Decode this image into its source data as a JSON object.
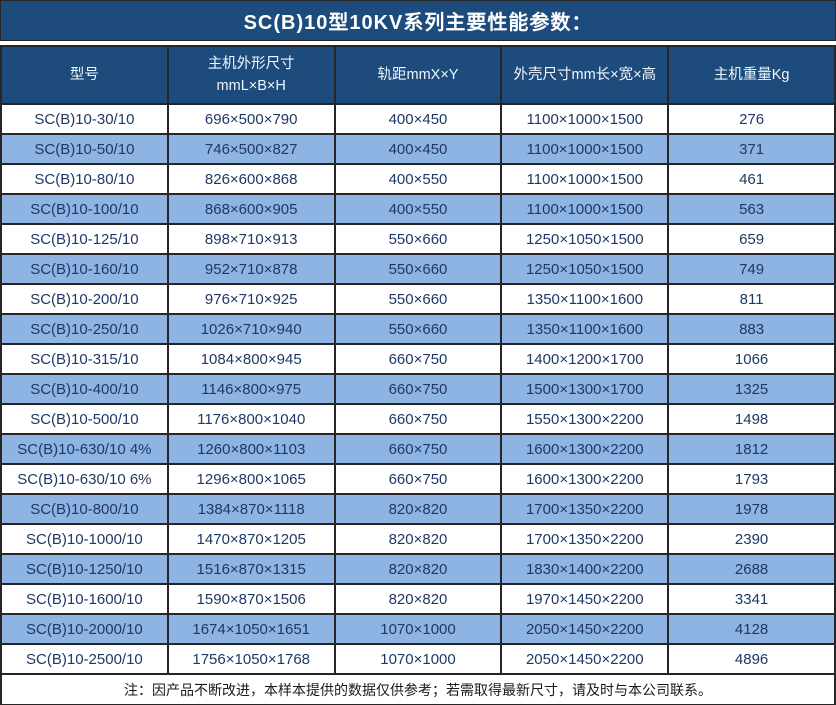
{
  "title": "SC(B)10型10KV系列主要性能参数：",
  "note": "注：因产品不断改进，本样本提供的数据仅供参考；若需取得最新尺寸，请及时与本公司联系。",
  "colors": {
    "header_bg": "#1c4b7c",
    "row_alt_bg": "#8db4e2",
    "text_dark": "#1f3864",
    "border": "#262626"
  },
  "table": {
    "headers": [
      "型号",
      "主机外形尺寸\nmmL×B×H",
      "轨距mmX×Y",
      "外壳尺寸mm长×宽×高",
      "主机重量Kg"
    ],
    "rows": [
      [
        "SC(B)10-30/10",
        "696×500×790",
        "400×450",
        "1100×1000×1500",
        "276"
      ],
      [
        "SC(B)10-50/10",
        "746×500×827",
        "400×450",
        "1100×1000×1500",
        "371"
      ],
      [
        "SC(B)10-80/10",
        "826×600×868",
        "400×550",
        "1100×1000×1500",
        "461"
      ],
      [
        "SC(B)10-100/10",
        "868×600×905",
        "400×550",
        "1100×1000×1500",
        "563"
      ],
      [
        "SC(B)10-125/10",
        "898×710×913",
        "550×660",
        "1250×1050×1500",
        "659"
      ],
      [
        "SC(B)10-160/10",
        "952×710×878",
        "550×660",
        "1250×1050×1500",
        "749"
      ],
      [
        "SC(B)10-200/10",
        "976×710×925",
        "550×660",
        "1350×1100×1600",
        "811"
      ],
      [
        "SC(B)10-250/10",
        "1026×710×940",
        "550×660",
        "1350×1100×1600",
        "883"
      ],
      [
        "SC(B)10-315/10",
        "1084×800×945",
        "660×750",
        "1400×1200×1700",
        "1066"
      ],
      [
        "SC(B)10-400/10",
        "1146×800×975",
        "660×750",
        "1500×1300×1700",
        "1325"
      ],
      [
        "SC(B)10-500/10",
        "1176×800×1040",
        "660×750",
        "1550×1300×2200",
        "1498"
      ],
      [
        "SC(B)10-630/10 4%",
        "1260×800×1103",
        "660×750",
        "1600×1300×2200",
        "1812"
      ],
      [
        "SC(B)10-630/10 6%",
        "1296×800×1065",
        "660×750",
        "1600×1300×2200",
        "1793"
      ],
      [
        "SC(B)10-800/10",
        "1384×870×1118",
        "820×820",
        "1700×1350×2200",
        "1978"
      ],
      [
        "SC(B)10-1000/10",
        "1470×870×1205",
        "820×820",
        "1700×1350×2200",
        "2390"
      ],
      [
        "SC(B)10-1250/10",
        "1516×870×1315",
        "820×820",
        "1830×1400×2200",
        "2688"
      ],
      [
        "SC(B)10-1600/10",
        "1590×870×1506",
        "820×820",
        "1970×1450×2200",
        "3341"
      ],
      [
        "SC(B)10-2000/10",
        "1674×1050×1651",
        "1070×1000",
        "2050×1450×2200",
        "4128"
      ],
      [
        "SC(B)10-2500/10",
        "1756×1050×1768",
        "1070×1000",
        "2050×1450×2200",
        "4896"
      ]
    ]
  }
}
